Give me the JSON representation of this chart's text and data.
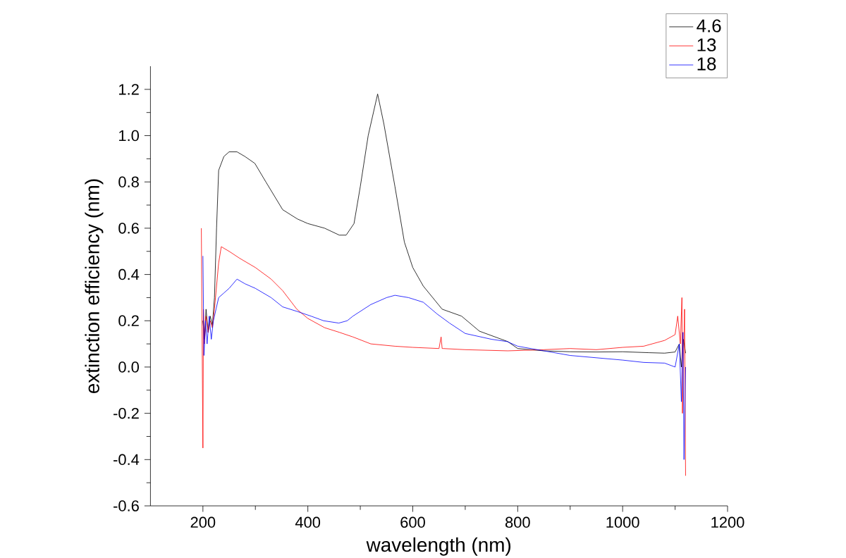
{
  "chart_data": {
    "type": "line",
    "xlabel": "wavelength (nm)",
    "ylabel": "extinction efficiency (nm)",
    "xlim": [
      100,
      1200
    ],
    "ylim": [
      -0.6,
      1.3
    ],
    "xticks": [
      200,
      400,
      600,
      800,
      1000,
      1200
    ],
    "yticks": [
      -0.6,
      -0.4,
      -0.2,
      {
        "value": 0,
        "label": "0.0"
      },
      0.2,
      0.4,
      0.6,
      0.8,
      {
        "value": 1,
        "label": "1.0"
      },
      1.2
    ],
    "grid": false,
    "legend": "top right",
    "marker": "none",
    "line_style": "solid",
    "series": [
      {
        "name": "4.6",
        "color": "#000000",
        "x": [
          200,
          203,
          206,
          210,
          214,
          218,
          222,
          226,
          230,
          240,
          250,
          265,
          280,
          299,
          320,
          352,
          380,
          400,
          432,
          460,
          473,
          488,
          500,
          515,
          533,
          545,
          566,
          584,
          600,
          620,
          656,
          693,
          727,
          781,
          800,
          850,
          900,
          950,
          1000,
          1050,
          1080,
          1100,
          1108,
          1112,
          1116,
          1120
        ],
        "values": [
          0.2,
          0.12,
          0.25,
          0.15,
          0.22,
          0.18,
          0.3,
          0.6,
          0.85,
          0.91,
          0.93,
          0.93,
          0.91,
          0.88,
          0.8,
          0.68,
          0.64,
          0.62,
          0.6,
          0.57,
          0.57,
          0.62,
          0.78,
          1.0,
          1.18,
          1.05,
          0.78,
          0.54,
          0.43,
          0.35,
          0.25,
          0.22,
          0.155,
          0.11,
          0.08,
          0.07,
          0.066,
          0.065,
          0.066,
          0.062,
          0.06,
          0.065,
          0.1,
          0.0,
          0.12,
          0.06
        ]
      },
      {
        "name": "13",
        "color": "#ff0000",
        "x": [
          197,
          200,
          201,
          203,
          206,
          210,
          214,
          218,
          222,
          226,
          230,
          235,
          250,
          270,
          300,
          330,
          352,
          379,
          400,
          432,
          460,
          486,
          520,
          566,
          600,
          650,
          654,
          656,
          658,
          700,
          781,
          850,
          900,
          950,
          1000,
          1040,
          1080,
          1100,
          1105,
          1110,
          1113,
          1114,
          1118,
          1120
        ],
        "values": [
          0.6,
          -0.35,
          0.25,
          0.1,
          0.22,
          0.15,
          0.2,
          0.17,
          0.25,
          0.35,
          0.45,
          0.52,
          0.5,
          0.47,
          0.43,
          0.38,
          0.33,
          0.25,
          0.21,
          0.17,
          0.15,
          0.13,
          0.1,
          0.09,
          0.085,
          0.08,
          0.13,
          0.08,
          0.08,
          0.075,
          0.07,
          0.075,
          0.08,
          0.075,
          0.085,
          0.09,
          0.115,
          0.14,
          0.22,
          0.1,
          0.3,
          -0.2,
          0.25,
          -0.47
        ]
      },
      {
        "name": "18",
        "color": "#0000ff",
        "x": [
          200,
          202,
          205,
          208,
          212,
          216,
          220,
          225,
          230,
          240,
          250,
          265,
          280,
          300,
          330,
          352,
          380,
          406,
          430,
          459,
          475,
          486,
          520,
          550,
          566,
          592,
          620,
          646,
          670,
          700,
          750,
          780,
          800,
          850,
          900,
          950,
          1000,
          1040,
          1080,
          1100,
          1108,
          1112,
          1115,
          1117,
          1120
        ],
        "values": [
          0.48,
          0.05,
          0.2,
          0.1,
          0.22,
          0.12,
          0.2,
          0.25,
          0.3,
          0.32,
          0.34,
          0.38,
          0.36,
          0.34,
          0.3,
          0.26,
          0.24,
          0.22,
          0.2,
          0.19,
          0.2,
          0.22,
          0.27,
          0.3,
          0.31,
          0.3,
          0.28,
          0.23,
          0.19,
          0.145,
          0.12,
          0.11,
          0.09,
          0.07,
          0.05,
          0.04,
          0.03,
          0.02,
          0.017,
          0.0,
          0.1,
          -0.15,
          0.15,
          -0.4,
          0.0
        ]
      }
    ]
  }
}
